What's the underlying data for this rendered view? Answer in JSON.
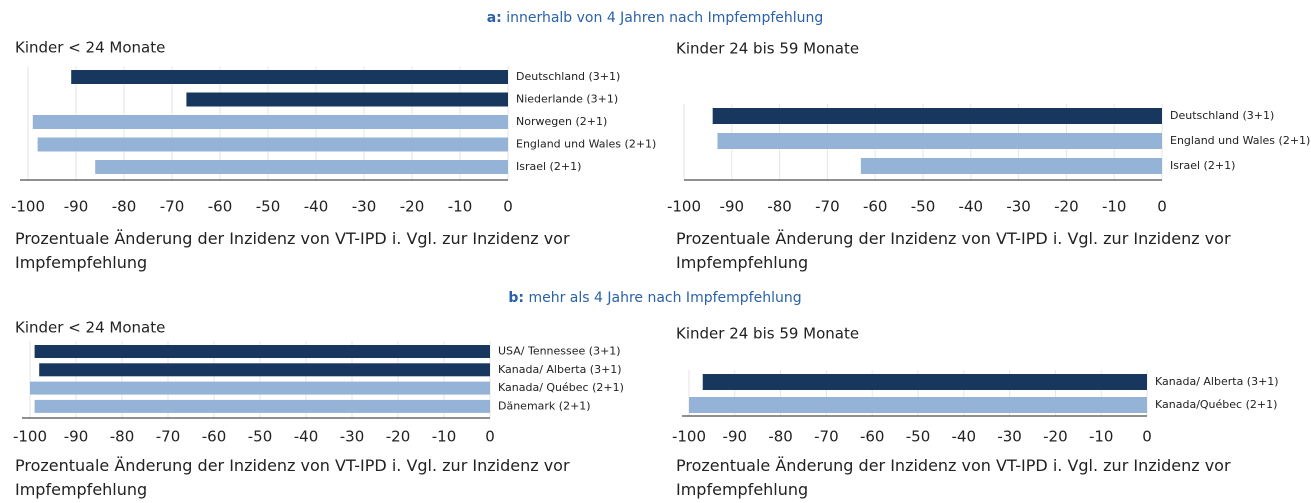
{
  "sections": [
    {
      "label": "a:",
      "title": "innerhalb von 4 Jahren nach Impfempfehlung"
    },
    {
      "label": "b:",
      "title": "mehr als 4 Jahre nach Impfempfehlung"
    }
  ],
  "chart_data": [
    {
      "type": "bar",
      "orientation": "horizontal",
      "title": "Kinder < 24 Monate",
      "xlabel": "Prozentuale Änderung der Inzidenz von VT-IPD i. Vgl. zur Inzidenz vor Impfempfehlung",
      "categories": [
        "Deutschland (3+1)",
        "Niederlande (3+1)",
        "Norwegen (2+1)",
        "England und Wales (2+1)",
        "Israel (2+1)"
      ],
      "values": [
        -91,
        -67,
        -99,
        -98,
        -86
      ],
      "colors": [
        "#17375e",
        "#17375e",
        "#95b3d7",
        "#95b3d7",
        "#95b3d7"
      ],
      "xlim": [
        -100,
        0
      ],
      "xticks": [
        -100,
        -90,
        -80,
        -70,
        -60,
        -50,
        -40,
        -30,
        -20,
        -10,
        0
      ],
      "grid": true
    },
    {
      "type": "bar",
      "orientation": "horizontal",
      "title": "Kinder 24 bis 59 Monate",
      "xlabel": "Prozentuale Änderung der Inzidenz von VT-IPD i. Vgl. zur Inzidenz vor Impfempfehlung",
      "categories": [
        "Deutschland (3+1)",
        "England und Wales (2+1)",
        "Israel (2+1)"
      ],
      "values": [
        -94,
        -93,
        -63
      ],
      "colors": [
        "#17375e",
        "#95b3d7",
        "#95b3d7"
      ],
      "xlim": [
        -100,
        0
      ],
      "xticks": [
        -100,
        -90,
        -80,
        -70,
        -60,
        -50,
        -40,
        -30,
        -20,
        -10,
        0
      ],
      "grid": true
    },
    {
      "type": "bar",
      "orientation": "horizontal",
      "title": "Kinder < 24 Monate",
      "xlabel": "Prozentuale Änderung der Inzidenz von VT-IPD i. Vgl. zur Inzidenz vor Impfempfehlung",
      "categories": [
        "USA/ Tennessee (3+1)",
        "Kanada/ Alberta (3+1)",
        "Kanada/ Québec (2+1)",
        "Dänemark (2+1)"
      ],
      "values": [
        -99,
        -98,
        -100,
        -99
      ],
      "colors": [
        "#17375e",
        "#17375e",
        "#95b3d7",
        "#95b3d7"
      ],
      "xlim": [
        -100,
        0
      ],
      "xticks": [
        -100,
        -90,
        -80,
        -70,
        -60,
        -50,
        -40,
        -30,
        -20,
        -10,
        0
      ],
      "grid": true
    },
    {
      "type": "bar",
      "orientation": "horizontal",
      "title": "Kinder 24 bis 59 Monate",
      "xlabel": "Prozentuale Änderung der Inzidenz von VT-IPD i. Vgl. zur Inzidenz vor Impfempfehlung",
      "categories": [
        "Kanada/ Alberta (3+1)",
        "Kanada/Québec (2+1)"
      ],
      "values": [
        -97,
        -100
      ],
      "colors": [
        "#17375e",
        "#95b3d7"
      ],
      "xlim": [
        -100,
        0
      ],
      "xticks": [
        -100,
        -90,
        -80,
        -70,
        -60,
        -50,
        -40,
        -30,
        -20,
        -10,
        0
      ],
      "grid": true
    }
  ]
}
